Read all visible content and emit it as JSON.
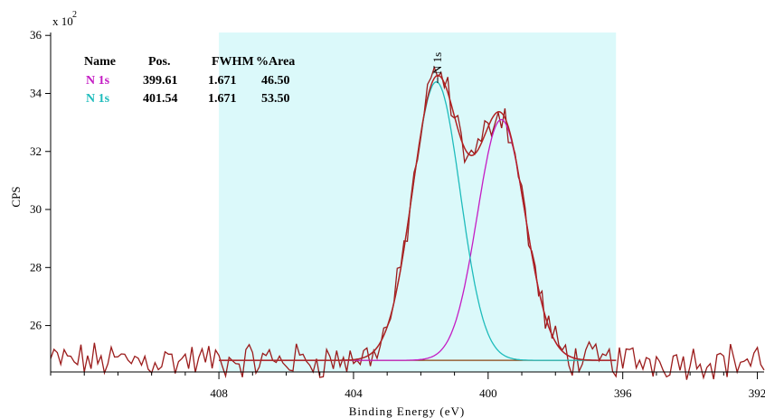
{
  "chart_data": {
    "type": "line",
    "xlabel": "Binding Energy (eV)",
    "ylabel": "CPS",
    "y_multiplier": "x 10",
    "y_multiplier_exp": "2",
    "xlim": [
      413,
      391.8
    ],
    "ylim": [
      24.4,
      36.1
    ],
    "x_reversed": true,
    "x_ticks": [
      408,
      404,
      400,
      396,
      392
    ],
    "y_ticks": [
      26,
      28,
      30,
      32,
      34,
      36
    ],
    "region": {
      "from": 408,
      "to": 396.2,
      "color": "#dbf9fa"
    },
    "peak_label": {
      "text": "N 1s",
      "x": 401.5
    },
    "background": {
      "value": 24.8,
      "from": 408,
      "to": 396.2,
      "color": "#8b4513"
    },
    "components": [
      {
        "name": "N 1s",
        "position": 399.61,
        "fwhm": 1.671,
        "area_pct": 46.5,
        "height": 8.3,
        "color": "#c41cc4"
      },
      {
        "name": "N 1s",
        "position": 401.54,
        "fwhm": 1.671,
        "area_pct": 53.5,
        "height": 9.6,
        "color": "#1fbcbc"
      }
    ],
    "series": [
      {
        "name": "envelope",
        "color": "#b22222",
        "from": 408,
        "to": 396.2
      },
      {
        "name": "data",
        "color": "#9b1c1c",
        "from": 413,
        "to": 391.8
      }
    ],
    "table": {
      "headers": [
        "Name",
        "Pos.",
        "FWHM",
        "%Area"
      ],
      "rows": [
        [
          "N 1s",
          "399.61",
          "1.671",
          "46.50"
        ],
        [
          "N 1s",
          "401.54",
          "1.671",
          "53.50"
        ]
      ],
      "row_colors": [
        "#c41cc4",
        "#1fbcbc"
      ]
    }
  }
}
